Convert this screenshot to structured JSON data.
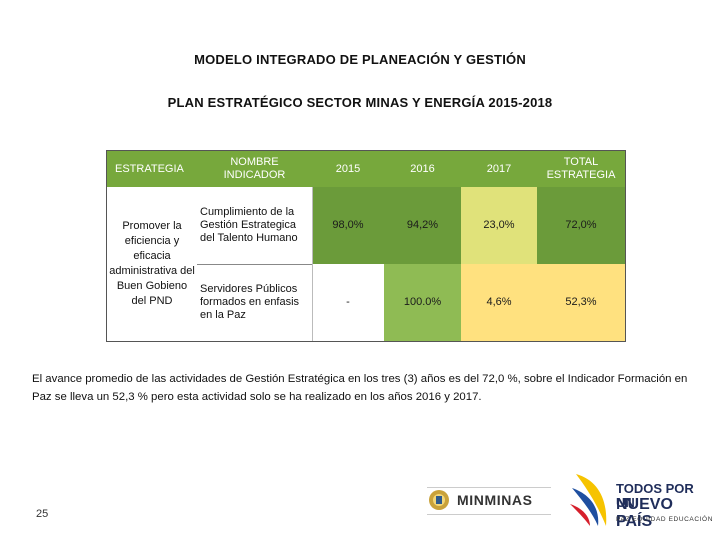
{
  "titles": {
    "main": "MODELO INTEGRADO DE PLANEACIÓN Y GESTIÓN",
    "sub": "PLAN ESTRATÉGICO SECTOR MINAS Y ENERGÍA 2015-2018"
  },
  "table": {
    "headers": [
      "ESTRATEGIA",
      "NOMBRE\nINDICADOR",
      "2015",
      "2016",
      "2017",
      "TOTAL\nESTRATEGIA"
    ],
    "estrategia": "Promover la eficiencia y eficacia administrativa del Buen Gobieno del PND",
    "rows": [
      {
        "indicador": "Cumplimiento de la Gestión Estrategica del Talento Humano",
        "v2015": "98,0%",
        "v2016": "94,2%",
        "v2017": "23,0%",
        "total": "72,0%"
      },
      {
        "indicador": "Servidores Públicos formados en enfasis en la Paz",
        "v2015": "-",
        "v2016": "100.0%",
        "v2017": "4,6%",
        "total": "52,3%"
      }
    ]
  },
  "paragraph": "El avance promedio de las actividades de Gestión Estratégica en los tres (3) años es del 72,0 %, sobre el Indicador Formación en Paz se lleva un 52,3 % pero esta actividad solo se ha realizado en los años 2016 y 2017.",
  "page_number": "25",
  "logos": {
    "minminas": "MINMINAS",
    "nuevo_pais_line1": "TODOS POR UN",
    "nuevo_pais_line2": "NUEVO PAÍS",
    "nuevo_pais_line3": "PAZ EQUIDAD EDUCACIÓN"
  },
  "colors": {
    "header_green": "#77a83c",
    "dark_green": "#6b9b3a",
    "mid_green": "#8fbb54",
    "light_yellow": "#e0e27a",
    "gold": "#ffe17f"
  }
}
